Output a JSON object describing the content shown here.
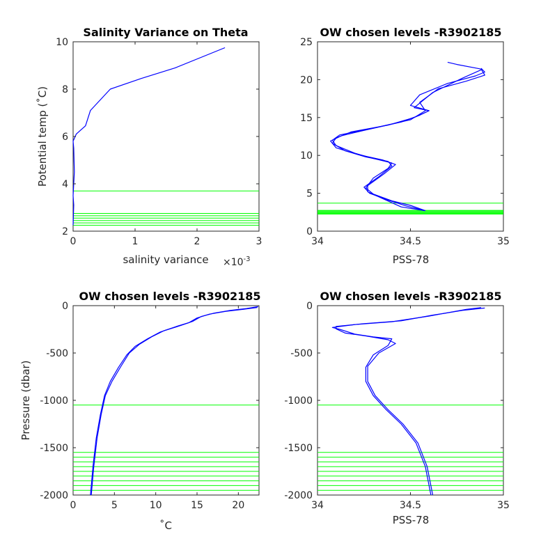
{
  "colors": {
    "profile": "#0000ff",
    "level": "#00ff00",
    "axis": "#262626"
  },
  "chart_data": [
    {
      "type": "line",
      "title": "Salinity Variance on Theta",
      "xlabel": "salinity variance",
      "x_exponent": "×10",
      "x_exponent_power": "-3",
      "ylabel": "Potential temp (˚C)",
      "xlim": [
        0,
        3
      ],
      "ylim": [
        2,
        10
      ],
      "xticks": [
        0,
        1,
        2,
        3
      ],
      "xtick_labels": [
        "0",
        "1",
        "2",
        "3"
      ],
      "yticks": [
        2,
        4,
        6,
        8,
        10
      ],
      "ytick_labels": [
        "2",
        "4",
        "6",
        "8",
        "10"
      ],
      "series": [
        {
          "x": [
            0.0,
            0.01,
            0.0,
            0.02,
            0.01,
            0.0,
            0.05,
            0.2,
            0.28,
            0.6,
            1.1,
            1.65,
            2.45
          ],
          "y": [
            2.25,
            3.1,
            3.5,
            4.5,
            5.5,
            5.8,
            6.1,
            6.45,
            7.1,
            8.0,
            8.45,
            8.9,
            9.75
          ]
        }
      ],
      "levels": [
        3.7,
        2.75,
        2.65,
        2.55,
        2.45,
        2.35,
        2.25
      ]
    },
    {
      "type": "line",
      "title": "OW chosen levels -R3902185",
      "xlabel": "PSS-78",
      "ylabel": "",
      "xlim": [
        34,
        35
      ],
      "ylim": [
        0,
        25
      ],
      "xticks": [
        34,
        34.5,
        35
      ],
      "xtick_labels": [
        "34",
        "34.5",
        "35"
      ],
      "yticks": [
        0,
        5,
        10,
        15,
        20,
        25
      ],
      "ytick_labels": [
        "0",
        "5",
        "10",
        "15",
        "20",
        "25"
      ],
      "series": [
        {
          "x": [
            34.58,
            34.5,
            34.4,
            34.3,
            34.26,
            34.3,
            34.38,
            34.4,
            34.3,
            34.2,
            34.1,
            34.08,
            34.12,
            34.3,
            34.5,
            34.58,
            34.55,
            34.65,
            34.8,
            34.9,
            34.88,
            34.75,
            34.7
          ],
          "y": [
            2.7,
            3.4,
            4.0,
            4.9,
            5.7,
            7.0,
            8.3,
            9.0,
            9.6,
            10.3,
            11.3,
            12.0,
            12.7,
            13.6,
            14.7,
            15.9,
            17.0,
            18.8,
            19.8,
            20.6,
            21.4,
            22.0,
            22.3
          ]
        },
        {
          "x": [
            34.58,
            34.48,
            34.38,
            34.28,
            34.25,
            34.33,
            34.4,
            34.38,
            34.26,
            34.15,
            34.08,
            34.1,
            34.18,
            34.38,
            34.52,
            34.6,
            34.5,
            34.55,
            34.7,
            34.85,
            34.9,
            34.88
          ],
          "y": [
            2.7,
            3.3,
            4.1,
            5.0,
            5.8,
            7.2,
            8.6,
            9.2,
            9.8,
            10.6,
            11.6,
            12.3,
            13.1,
            14.0,
            15.0,
            15.9,
            16.6,
            18.0,
            19.5,
            20.5,
            21.0,
            21.5
          ]
        },
        {
          "x": [
            34.58,
            34.45,
            34.35,
            34.27,
            34.27,
            34.36,
            34.42,
            34.35,
            34.22,
            34.1,
            34.07,
            34.13,
            34.25,
            34.45,
            34.55,
            34.6,
            34.52,
            34.62,
            34.78,
            34.88
          ],
          "y": [
            2.7,
            3.2,
            4.3,
            5.2,
            6.0,
            7.6,
            8.8,
            9.4,
            10.1,
            11.0,
            11.9,
            12.6,
            13.3,
            14.4,
            15.3,
            15.9,
            16.3,
            18.3,
            20.2,
            21.3
          ]
        }
      ],
      "levels": [
        3.7,
        2.75,
        2.65,
        2.55,
        2.45,
        2.35,
        2.25
      ]
    },
    {
      "type": "line",
      "title": "OW chosen levels -R3902185",
      "xlabel": "˚C",
      "ylabel": "Pressure (dbar)",
      "xlim": [
        0,
        22.5
      ],
      "ylim": [
        -2000,
        0
      ],
      "xticks": [
        0,
        5,
        10,
        15,
        20
      ],
      "xtick_labels": [
        "0",
        "5",
        "10",
        "15",
        "20"
      ],
      "yticks": [
        -2000,
        -1500,
        -1000,
        -500,
        0
      ],
      "ytick_labels": [
        "-2000",
        "-1500",
        "-1000",
        "-500",
        "0"
      ],
      "series": [
        {
          "x": [
            2.1,
            2.4,
            2.8,
            3.3,
            3.8,
            4.5,
            5.5,
            6.5,
            7.5,
            9.0,
            10.5,
            12.5,
            14.0,
            15.0,
            16.5,
            18.5,
            20.5,
            22.3
          ],
          "y": [
            -2000,
            -1700,
            -1400,
            -1150,
            -950,
            -800,
            -650,
            -520,
            -430,
            -350,
            -280,
            -220,
            -180,
            -130,
            -90,
            -60,
            -40,
            -20
          ]
        },
        {
          "x": [
            2.2,
            2.5,
            2.9,
            3.4,
            3.9,
            4.7,
            5.8,
            6.8,
            8.0,
            9.5,
            11.0,
            13.0,
            14.5,
            15.5,
            17.0,
            19.0,
            21.0,
            22.4
          ],
          "y": [
            -2000,
            -1700,
            -1400,
            -1150,
            -950,
            -800,
            -640,
            -500,
            -410,
            -330,
            -265,
            -210,
            -165,
            -115,
            -80,
            -50,
            -30,
            -10
          ]
        }
      ],
      "levels": [
        -1050,
        -1550,
        -1600,
        -1650,
        -1700,
        -1750,
        -1800,
        -1850,
        -1900,
        -1950
      ]
    },
    {
      "type": "line",
      "title": "OW chosen levels -R3902185",
      "xlabel": "PSS-78",
      "ylabel": "",
      "xlim": [
        34,
        35
      ],
      "ylim": [
        -2000,
        0
      ],
      "xticks": [
        34,
        34.5,
        35
      ],
      "xtick_labels": [
        "34",
        "34.5",
        "35"
      ],
      "yticks": [
        -2000,
        -1500,
        -1000,
        -500,
        0
      ],
      "ytick_labels": [
        "-2000",
        "-1500",
        "-1000",
        "-500",
        "0"
      ],
      "series": [
        {
          "x": [
            34.61,
            34.58,
            34.53,
            34.45,
            34.37,
            34.3,
            34.26,
            34.26,
            34.3,
            34.38,
            34.4,
            34.3,
            34.2,
            34.12,
            34.08,
            34.2,
            34.4,
            34.6,
            34.8,
            34.88
          ],
          "y": [
            -2000,
            -1700,
            -1450,
            -1250,
            -1100,
            -950,
            -800,
            -650,
            -520,
            -420,
            -350,
            -330,
            -300,
            -250,
            -230,
            -200,
            -170,
            -110,
            -40,
            -20
          ]
        },
        {
          "x": [
            34.62,
            34.59,
            34.54,
            34.46,
            34.38,
            34.31,
            34.27,
            34.27,
            34.33,
            34.42,
            34.38,
            34.26,
            34.15,
            34.1,
            34.1,
            34.25,
            34.45,
            34.62,
            34.78,
            34.9
          ],
          "y": [
            -2000,
            -1700,
            -1450,
            -1250,
            -1100,
            -950,
            -800,
            -640,
            -500,
            -400,
            -360,
            -320,
            -290,
            -245,
            -220,
            -190,
            -160,
            -100,
            -50,
            -25
          ]
        }
      ],
      "levels": [
        -1050,
        -1550,
        -1600,
        -1650,
        -1700,
        -1750,
        -1800,
        -1850,
        -1900,
        -1950
      ]
    }
  ]
}
